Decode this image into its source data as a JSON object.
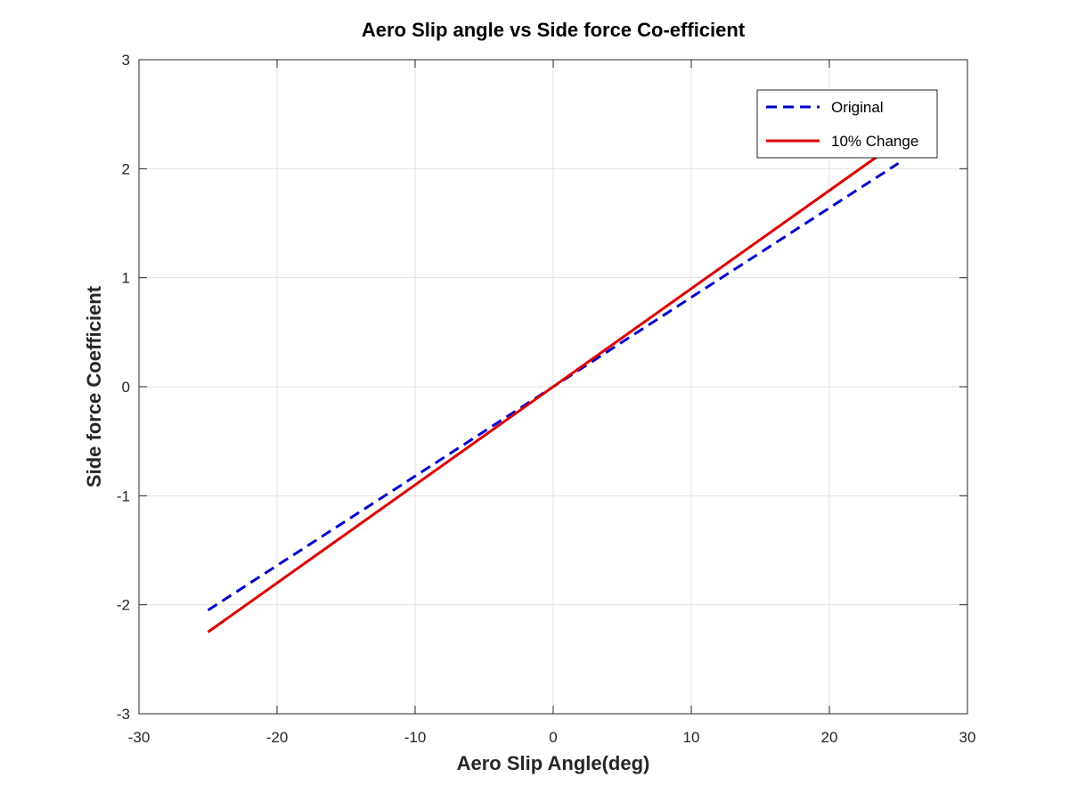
{
  "chart_data": {
    "type": "line",
    "title": "Aero Slip angle vs Side force Co-efficient",
    "xlabel": "Aero Slip Angle(deg)",
    "ylabel": "Side force Coefficient",
    "xlim": [
      -30,
      30
    ],
    "ylim": [
      -3,
      3
    ],
    "xticks": [
      -30,
      -20,
      -10,
      0,
      10,
      20,
      30
    ],
    "yticks": [
      -3,
      -2,
      -1,
      0,
      1,
      2,
      3
    ],
    "x_tick_labels": [
      "-30",
      "-20",
      "-10",
      "0",
      "10",
      "20",
      "30"
    ],
    "y_tick_labels": [
      "-3",
      "-2",
      "-1",
      "0",
      "1",
      "2",
      "3"
    ],
    "grid": true,
    "legend_position": "top-right",
    "series": [
      {
        "name": "Original",
        "color": "#0000CC",
        "style": "dashed",
        "x": [
          -25,
          25
        ],
        "y": [
          -2.05,
          2.05
        ]
      },
      {
        "name": "10% Change",
        "color": "#DD0000",
        "style": "solid",
        "x": [
          -25,
          25
        ],
        "y": [
          -2.25,
          2.25
        ]
      }
    ]
  }
}
